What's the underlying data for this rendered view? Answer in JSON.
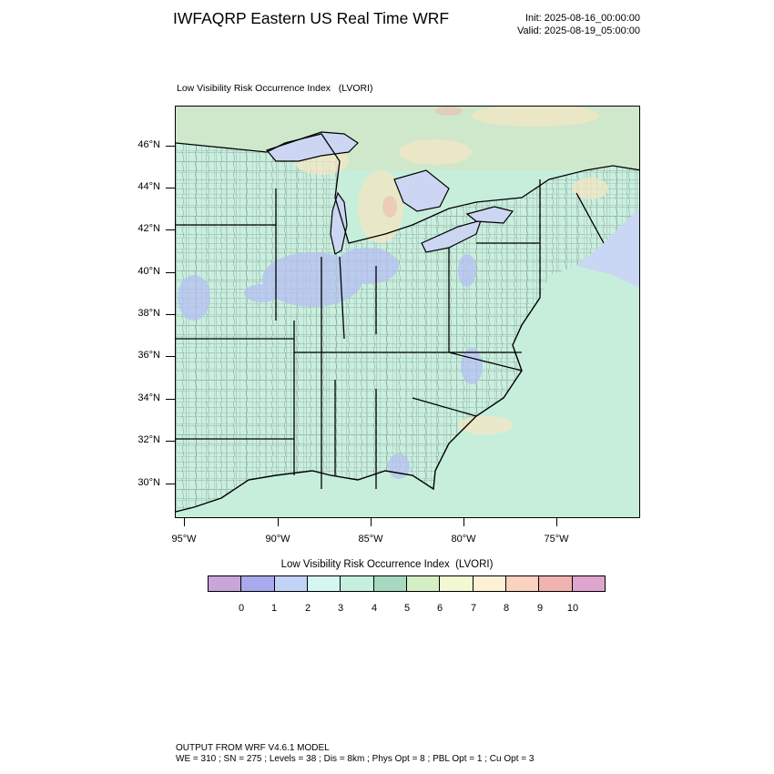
{
  "header": {
    "title": "IWFAQRP Eastern US Real Time WRF",
    "init": "Init: 2025-08-16_00:00:00",
    "valid": "Valid: 2025-08-19_05:00:00"
  },
  "plot": {
    "title": "Low Visibility Risk Occurrence Index   (LVORI)",
    "lat_labels": [
      "46°N",
      "44°N",
      "42°N",
      "40°N",
      "38°N",
      "36°N",
      "34°N",
      "32°N",
      "30°N"
    ],
    "lon_labels": [
      "95°W",
      "90°W",
      "85°W",
      "80°W",
      "75°W"
    ]
  },
  "colorbar": {
    "title": "Low Visibility Risk Occurrence Index  (LVORI)",
    "labels": [
      "0",
      "1",
      "2",
      "3",
      "4",
      "5",
      "6",
      "7",
      "8",
      "9",
      "10"
    ],
    "colors": [
      "#c8a6da",
      "#a9a9ee",
      "#c3d3f7",
      "#d5f7f2",
      "#c5efde",
      "#a6d9bf",
      "#d5efc5",
      "#f2f9d2",
      "#fdf0d5",
      "#fbd2c0",
      "#f1b2b2",
      "#dfa5cf"
    ]
  },
  "map_colors": {
    "ocean": "#c7eedb",
    "land": "#c9efdf",
    "lake": "#ccd6f2",
    "canada_land": "#cfe8cc"
  },
  "footer": {
    "line1": "OUTPUT FROM WRF V4.6.1 MODEL",
    "line2": "WE = 310 ; SN = 275 ; Levels = 38 ; Dis = 8km ; Phys Opt = 8 ; PBL Opt = 1 ; Cu Opt = 3"
  }
}
